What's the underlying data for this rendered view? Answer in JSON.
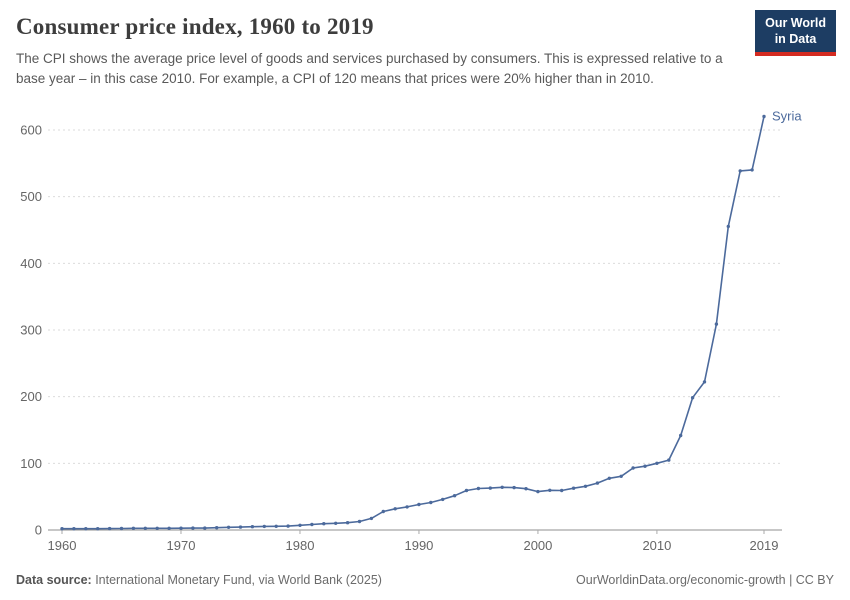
{
  "header": {
    "title": "Consumer price index, 1960 to 2019",
    "subtitle": "The CPI shows the average price level of goods and services purchased by consumers. This is expressed relative to a base year – in this case 2010. For example, a CPI of 120 means that prices were 20% higher than in 2010.",
    "logo": {
      "line1": "Our World",
      "line2": "in Data",
      "bg_color": "#1d3d63",
      "accent_color": "#d42b21"
    }
  },
  "chart_data": {
    "type": "line",
    "title": "Consumer price index, 1960 to 2019",
    "xlabel": "",
    "ylabel": "",
    "xlim": [
      1960,
      2019
    ],
    "ylim": [
      0,
      620
    ],
    "yticks": [
      0,
      100,
      200,
      300,
      400,
      500,
      600
    ],
    "xticks": [
      1960,
      1970,
      1980,
      1990,
      2000,
      2010,
      2019
    ],
    "grid": "dashed-horizontal",
    "marker": "dot",
    "legend_position": "end-of-line-label",
    "series": [
      {
        "name": "Syria",
        "color": "#4c6a9c",
        "x": [
          1960,
          1961,
          1962,
          1963,
          1964,
          1965,
          1966,
          1967,
          1968,
          1969,
          1970,
          1971,
          1972,
          1973,
          1974,
          1975,
          1976,
          1977,
          1978,
          1979,
          1980,
          1981,
          1982,
          1983,
          1984,
          1985,
          1986,
          1987,
          1988,
          1989,
          1990,
          1991,
          1992,
          1993,
          1994,
          1995,
          1996,
          1997,
          1998,
          1999,
          2000,
          2001,
          2002,
          2003,
          2004,
          2005,
          2006,
          2007,
          2008,
          2009,
          2010,
          2011,
          2012,
          2013,
          2014,
          2015,
          2016,
          2017,
          2018,
          2019
        ],
        "values": [
          2.0,
          2.0,
          2.0,
          2.0,
          2.1,
          2.3,
          2.5,
          2.6,
          2.6,
          2.6,
          2.7,
          2.8,
          2.9,
          3.5,
          4.0,
          4.4,
          4.9,
          5.4,
          5.6,
          5.9,
          7.0,
          8.3,
          9.5,
          10.1,
          11.0,
          12.8,
          17.4,
          27.7,
          31.8,
          34.7,
          38.3,
          41.3,
          45.9,
          51.5,
          59.3,
          62.2,
          62.8,
          64.0,
          63.6,
          62.0,
          57.6,
          59.5,
          59.3,
          62.7,
          65.5,
          70.3,
          77.5,
          80.6,
          93.0,
          95.7,
          100.0,
          104.9,
          141.8,
          198.5,
          222.2,
          308.9,
          455.4,
          538.7,
          540.2,
          620.2
        ]
      }
    ]
  },
  "footer": {
    "source_label": "Data source:",
    "source_text": " International Monetary Fund, via World Bank (2025)",
    "credit": "OurWorldinData.org/economic-growth | CC BY"
  }
}
